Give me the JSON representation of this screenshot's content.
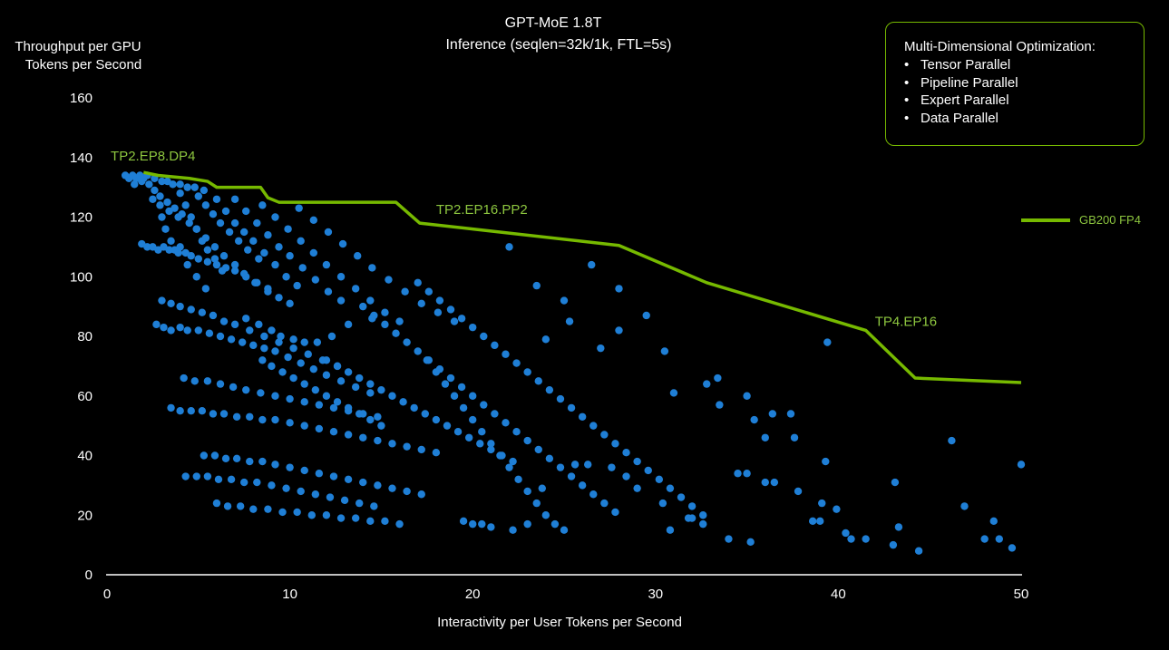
{
  "colors": {
    "background": "#000000",
    "line": "#76b900",
    "points": "#1f7fd6",
    "annotation": "#8dc63f"
  },
  "panel": {
    "title": "Multi-Dimensional Optimization:",
    "items": [
      "Tensor Parallel",
      "Pipeline Parallel",
      "Expert Parallel",
      "Data Parallel"
    ]
  },
  "chart_data": {
    "type": "scatter",
    "title": "GPT-MoE 1.8T",
    "subtitle": "Inference (seqlen=32k/1k, FTL=5s)",
    "xlabel": "Interactivity per User Tokens per Second",
    "ylabel_line1": "Throughput per GPU",
    "ylabel_line2": "Tokens per Second",
    "xlim": [
      0,
      50
    ],
    "ylim": [
      0,
      160
    ],
    "x_ticks": [
      0,
      10,
      20,
      30,
      40,
      50
    ],
    "y_ticks": [
      0,
      20,
      40,
      60,
      80,
      100,
      120,
      140,
      160
    ],
    "grid": false,
    "legend_position": "right",
    "series": [
      {
        "name": "GB200 FP4",
        "kind": "line",
        "x": [
          2.0,
          2.8,
          4.5,
          5.5,
          6.0,
          8.4,
          8.8,
          9.4,
          15.8,
          17.1,
          28.0,
          32.8,
          41.5,
          44.2,
          50.0
        ],
        "y": [
          135,
          134,
          133,
          132,
          130,
          130,
          126.5,
          125,
          125,
          118,
          110.5,
          98,
          82,
          66,
          64.5
        ]
      }
    ],
    "scatter_points": [
      [
        1.0,
        134
      ],
      [
        1.2,
        133
      ],
      [
        1.4,
        134
      ],
      [
        1.6,
        133
      ],
      [
        1.8,
        134
      ],
      [
        2.0,
        133
      ],
      [
        2.2,
        134
      ],
      [
        1.5,
        131
      ],
      [
        1.9,
        132
      ],
      [
        2.3,
        131
      ],
      [
        2.6,
        133
      ],
      [
        3.0,
        132
      ],
      [
        3.3,
        132
      ],
      [
        3.6,
        131
      ],
      [
        4.0,
        131
      ],
      [
        4.4,
        130
      ],
      [
        4.8,
        130
      ],
      [
        5.3,
        129
      ],
      [
        2.6,
        129
      ],
      [
        2.9,
        127
      ],
      [
        3.3,
        125
      ],
      [
        3.7,
        123
      ],
      [
        4.1,
        121
      ],
      [
        4.5,
        118
      ],
      [
        4.9,
        116
      ],
      [
        5.4,
        113
      ],
      [
        5.9,
        110
      ],
      [
        6.4,
        107
      ],
      [
        7.0,
        104
      ],
      [
        7.5,
        101
      ],
      [
        8.1,
        98
      ],
      [
        8.8,
        95
      ],
      [
        2.5,
        126
      ],
      [
        2.9,
        124
      ],
      [
        3.4,
        122
      ],
      [
        3.9,
        120
      ],
      [
        3.0,
        120
      ],
      [
        3.2,
        116
      ],
      [
        3.5,
        112
      ],
      [
        3.9,
        108
      ],
      [
        4.4,
        104
      ],
      [
        4.9,
        100
      ],
      [
        5.4,
        96
      ],
      [
        4.0,
        128
      ],
      [
        4.3,
        124
      ],
      [
        4.6,
        120
      ],
      [
        4.9,
        116
      ],
      [
        5.2,
        112
      ],
      [
        5.5,
        109
      ],
      [
        5.9,
        106
      ],
      [
        6.3,
        102
      ],
      [
        5.0,
        127
      ],
      [
        5.4,
        124
      ],
      [
        5.8,
        121
      ],
      [
        6.2,
        118
      ],
      [
        6.7,
        115
      ],
      [
        7.2,
        112
      ],
      [
        7.7,
        109
      ],
      [
        8.3,
        106
      ],
      [
        6.0,
        126
      ],
      [
        6.5,
        122
      ],
      [
        7.0,
        118
      ],
      [
        7.5,
        115
      ],
      [
        8.0,
        112
      ],
      [
        8.6,
        108
      ],
      [
        9.2,
        104
      ],
      [
        9.8,
        100
      ],
      [
        10.4,
        97
      ],
      [
        7.0,
        126
      ],
      [
        7.6,
        122
      ],
      [
        8.2,
        118
      ],
      [
        8.8,
        114
      ],
      [
        9.4,
        110
      ],
      [
        10.0,
        107
      ],
      [
        10.7,
        103
      ],
      [
        11.4,
        99
      ],
      [
        12.1,
        95
      ],
      [
        12.8,
        92
      ],
      [
        8.5,
        124
      ],
      [
        9.2,
        120
      ],
      [
        9.9,
        116
      ],
      [
        10.6,
        112
      ],
      [
        11.3,
        108
      ],
      [
        12.0,
        104
      ],
      [
        12.8,
        100
      ],
      [
        13.6,
        96
      ],
      [
        14.4,
        92
      ],
      [
        15.2,
        88
      ],
      [
        16.0,
        85
      ],
      [
        10.5,
        123
      ],
      [
        11.3,
        119
      ],
      [
        12.1,
        115
      ],
      [
        12.9,
        111
      ],
      [
        13.7,
        107
      ],
      [
        14.5,
        103
      ],
      [
        15.4,
        99
      ],
      [
        16.3,
        95
      ],
      [
        17.2,
        91
      ],
      [
        18.1,
        88
      ],
      [
        19.0,
        85
      ],
      [
        1.9,
        111
      ],
      [
        2.2,
        110
      ],
      [
        2.5,
        110
      ],
      [
        2.8,
        109
      ],
      [
        3.1,
        110
      ],
      [
        3.4,
        109
      ],
      [
        3.7,
        109
      ],
      [
        4.0,
        110
      ],
      [
        4.3,
        108
      ],
      [
        4.6,
        107
      ],
      [
        5.0,
        106
      ],
      [
        5.5,
        105
      ],
      [
        6.0,
        104
      ],
      [
        6.5,
        103
      ],
      [
        7.0,
        102
      ],
      [
        7.6,
        100
      ],
      [
        8.2,
        98
      ],
      [
        8.8,
        96
      ],
      [
        9.4,
        93
      ],
      [
        10.0,
        91
      ],
      [
        3.0,
        92
      ],
      [
        3.5,
        91
      ],
      [
        4.0,
        90
      ],
      [
        4.6,
        89
      ],
      [
        5.2,
        88
      ],
      [
        5.8,
        87
      ],
      [
        6.4,
        85
      ],
      [
        7.0,
        84
      ],
      [
        7.8,
        82
      ],
      [
        8.6,
        80
      ],
      [
        9.4,
        78
      ],
      [
        10.2,
        76
      ],
      [
        11.0,
        74
      ],
      [
        11.8,
        72
      ],
      [
        12.6,
        70
      ],
      [
        2.7,
        84
      ],
      [
        3.1,
        83
      ],
      [
        3.5,
        82
      ],
      [
        4.0,
        83
      ],
      [
        4.4,
        82
      ],
      [
        5.0,
        82
      ],
      [
        5.6,
        81
      ],
      [
        6.2,
        80
      ],
      [
        6.8,
        79
      ],
      [
        7.4,
        78
      ],
      [
        8.0,
        77
      ],
      [
        8.6,
        76
      ],
      [
        9.2,
        75
      ],
      [
        9.9,
        73
      ],
      [
        10.6,
        71
      ],
      [
        11.3,
        69
      ],
      [
        12.0,
        67
      ],
      [
        12.8,
        65
      ],
      [
        13.6,
        63
      ],
      [
        14.4,
        61
      ],
      [
        4.2,
        66
      ],
      [
        4.8,
        65
      ],
      [
        5.5,
        65
      ],
      [
        6.2,
        64
      ],
      [
        6.9,
        63
      ],
      [
        7.6,
        62
      ],
      [
        8.4,
        61
      ],
      [
        9.2,
        60
      ],
      [
        10.0,
        59
      ],
      [
        10.8,
        58
      ],
      [
        11.6,
        57
      ],
      [
        12.4,
        56
      ],
      [
        13.2,
        55
      ],
      [
        14.0,
        54
      ],
      [
        14.8,
        53
      ],
      [
        3.5,
        56
      ],
      [
        4.0,
        55
      ],
      [
        4.6,
        55
      ],
      [
        5.2,
        55
      ],
      [
        5.8,
        54
      ],
      [
        6.4,
        54
      ],
      [
        7.1,
        53
      ],
      [
        7.8,
        53
      ],
      [
        8.5,
        52
      ],
      [
        9.2,
        52
      ],
      [
        10.0,
        51
      ],
      [
        10.8,
        50
      ],
      [
        11.6,
        49
      ],
      [
        12.4,
        48
      ],
      [
        13.2,
        47
      ],
      [
        14.0,
        46
      ],
      [
        14.8,
        45
      ],
      [
        15.6,
        44
      ],
      [
        16.4,
        43
      ],
      [
        17.2,
        42
      ],
      [
        18.0,
        41
      ],
      [
        5.3,
        40
      ],
      [
        5.9,
        40
      ],
      [
        6.5,
        39
      ],
      [
        7.1,
        39
      ],
      [
        7.8,
        38
      ],
      [
        8.5,
        38
      ],
      [
        9.2,
        37
      ],
      [
        10.0,
        36
      ],
      [
        10.8,
        35
      ],
      [
        11.6,
        34
      ],
      [
        12.4,
        33
      ],
      [
        13.2,
        32
      ],
      [
        14.0,
        31
      ],
      [
        14.8,
        30
      ],
      [
        15.6,
        29
      ],
      [
        16.4,
        28
      ],
      [
        17.2,
        27
      ],
      [
        4.3,
        33
      ],
      [
        4.9,
        33
      ],
      [
        5.5,
        33
      ],
      [
        6.1,
        32
      ],
      [
        6.8,
        32
      ],
      [
        7.5,
        31
      ],
      [
        8.2,
        31
      ],
      [
        9.0,
        30
      ],
      [
        9.8,
        29
      ],
      [
        10.6,
        28
      ],
      [
        11.4,
        27
      ],
      [
        12.2,
        26
      ],
      [
        13.0,
        25
      ],
      [
        13.8,
        24
      ],
      [
        14.6,
        23
      ],
      [
        6.0,
        24
      ],
      [
        6.6,
        23
      ],
      [
        7.3,
        23
      ],
      [
        8.0,
        22
      ],
      [
        8.8,
        22
      ],
      [
        9.6,
        21
      ],
      [
        10.4,
        21
      ],
      [
        11.2,
        20
      ],
      [
        12.0,
        20
      ],
      [
        12.8,
        19
      ],
      [
        13.6,
        19
      ],
      [
        14.4,
        18
      ],
      [
        15.2,
        18
      ],
      [
        16.0,
        17
      ],
      [
        8.5,
        72
      ],
      [
        9.0,
        70
      ],
      [
        9.6,
        68
      ],
      [
        10.2,
        66
      ],
      [
        10.8,
        64
      ],
      [
        11.4,
        62
      ],
      [
        12.0,
        60
      ],
      [
        12.6,
        58
      ],
      [
        13.2,
        56
      ],
      [
        13.8,
        54
      ],
      [
        14.4,
        52
      ],
      [
        15.0,
        50
      ],
      [
        12.0,
        72
      ],
      [
        12.6,
        70
      ],
      [
        13.2,
        68
      ],
      [
        13.8,
        66
      ],
      [
        14.4,
        64
      ],
      [
        15.0,
        62
      ],
      [
        15.6,
        60
      ],
      [
        16.2,
        58
      ],
      [
        16.8,
        56
      ],
      [
        17.4,
        54
      ],
      [
        18.0,
        52
      ],
      [
        18.6,
        50
      ],
      [
        19.2,
        48
      ],
      [
        19.8,
        46
      ],
      [
        20.4,
        44
      ],
      [
        21.0,
        42
      ],
      [
        21.6,
        40
      ],
      [
        22.2,
        38
      ],
      [
        14.0,
        90
      ],
      [
        14.6,
        87
      ],
      [
        15.2,
        84
      ],
      [
        15.8,
        81
      ],
      [
        16.4,
        78
      ],
      [
        17.0,
        75
      ],
      [
        17.6,
        72
      ],
      [
        18.2,
        69
      ],
      [
        18.8,
        66
      ],
      [
        19.4,
        63
      ],
      [
        20.0,
        60
      ],
      [
        20.6,
        57
      ],
      [
        21.2,
        54
      ],
      [
        21.8,
        51
      ],
      [
        22.4,
        48
      ],
      [
        23.0,
        45
      ],
      [
        23.6,
        42
      ],
      [
        24.2,
        39
      ],
      [
        24.8,
        36
      ],
      [
        25.4,
        33
      ],
      [
        26.0,
        30
      ],
      [
        26.6,
        27
      ],
      [
        27.2,
        24
      ],
      [
        27.8,
        21
      ],
      [
        17.0,
        98
      ],
      [
        17.6,
        95
      ],
      [
        18.2,
        92
      ],
      [
        18.8,
        89
      ],
      [
        19.4,
        86
      ],
      [
        20.0,
        83
      ],
      [
        20.6,
        80
      ],
      [
        21.2,
        77
      ],
      [
        21.8,
        74
      ],
      [
        22.4,
        71
      ],
      [
        23.0,
        68
      ],
      [
        23.6,
        65
      ],
      [
        24.2,
        62
      ],
      [
        24.8,
        59
      ],
      [
        25.4,
        56
      ],
      [
        26.0,
        53
      ],
      [
        26.6,
        50
      ],
      [
        27.2,
        47
      ],
      [
        27.8,
        44
      ],
      [
        28.4,
        41
      ],
      [
        29.0,
        38
      ],
      [
        29.6,
        35
      ],
      [
        30.2,
        32
      ],
      [
        30.8,
        29
      ],
      [
        31.4,
        26
      ],
      [
        32.0,
        23
      ],
      [
        32.6,
        20
      ],
      [
        17.5,
        72
      ],
      [
        18.0,
        68
      ],
      [
        18.5,
        64
      ],
      [
        19.0,
        60
      ],
      [
        19.5,
        56
      ],
      [
        20.0,
        52
      ],
      [
        20.5,
        48
      ],
      [
        21.0,
        44
      ],
      [
        21.5,
        40
      ],
      [
        22.0,
        36
      ],
      [
        22.5,
        32
      ],
      [
        23.0,
        28
      ],
      [
        23.5,
        24
      ],
      [
        24.0,
        20
      ],
      [
        24.5,
        17
      ],
      [
        25.0,
        15
      ],
      [
        19.5,
        18
      ],
      [
        20.0,
        17
      ],
      [
        20.5,
        17
      ],
      [
        21.0,
        16
      ],
      [
        22.0,
        110
      ],
      [
        23.5,
        97
      ],
      [
        25.0,
        92
      ],
      [
        26.5,
        104
      ],
      [
        28.0,
        96
      ],
      [
        24.0,
        79
      ],
      [
        25.3,
        85
      ],
      [
        27.0,
        76
      ],
      [
        28.0,
        82
      ],
      [
        29.5,
        87
      ],
      [
        30.5,
        75
      ],
      [
        31.0,
        61
      ],
      [
        32.8,
        64
      ],
      [
        33.4,
        66
      ],
      [
        33.5,
        57
      ],
      [
        35.0,
        60
      ],
      [
        35.4,
        52
      ],
      [
        36.4,
        54
      ],
      [
        37.4,
        54
      ],
      [
        36.0,
        46
      ],
      [
        37.6,
        46
      ],
      [
        37.8,
        28
      ],
      [
        38.6,
        18
      ],
      [
        39.0,
        18
      ],
      [
        39.4,
        78
      ],
      [
        39.3,
        38
      ],
      [
        39.1,
        24
      ],
      [
        39.9,
        22
      ],
      [
        40.4,
        14
      ],
      [
        40.7,
        12
      ],
      [
        41.5,
        12
      ],
      [
        43.0,
        10
      ],
      [
        43.1,
        31
      ],
      [
        43.3,
        16
      ],
      [
        44.4,
        8
      ],
      [
        46.2,
        45
      ],
      [
        46.9,
        23
      ],
      [
        48.0,
        12
      ],
      [
        48.5,
        18
      ],
      [
        48.8,
        12
      ],
      [
        49.5,
        9
      ],
      [
        50.0,
        37
      ],
      [
        34.5,
        34
      ],
      [
        35.0,
        34
      ],
      [
        34.0,
        12
      ],
      [
        35.2,
        11
      ],
      [
        36.5,
        31
      ],
      [
        36.0,
        31
      ],
      [
        32.0,
        19
      ],
      [
        32.6,
        17
      ],
      [
        30.8,
        15
      ],
      [
        31.8,
        19
      ],
      [
        30.4,
        24
      ],
      [
        29.0,
        29
      ],
      [
        28.4,
        33
      ],
      [
        27.6,
        36
      ],
      [
        26.3,
        37
      ],
      [
        25.6,
        37
      ],
      [
        23.8,
        29
      ],
      [
        22.2,
        15
      ],
      [
        23.0,
        17
      ],
      [
        14.5,
        86
      ],
      [
        13.2,
        84
      ],
      [
        12.3,
        80
      ],
      [
        11.5,
        78
      ],
      [
        10.8,
        78
      ],
      [
        10.2,
        79
      ],
      [
        9.5,
        80
      ],
      [
        9.0,
        82
      ],
      [
        8.3,
        84
      ],
      [
        7.6,
        86
      ]
    ],
    "annotations": [
      {
        "text": "TP2.EP8.DP4",
        "x": 0.2,
        "y": 139
      },
      {
        "text": "TP2.EP16.PP2",
        "x": 18.0,
        "y": 121
      },
      {
        "text": "TP4.EP16",
        "x": 42.0,
        "y": 83.5
      }
    ]
  }
}
